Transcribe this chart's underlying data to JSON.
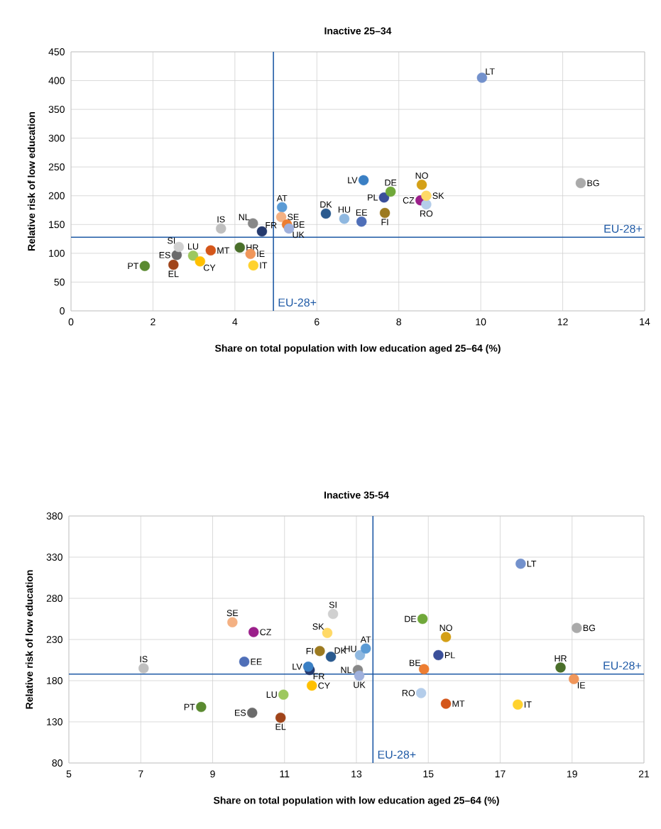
{
  "chart_data": [
    {
      "type": "scatter",
      "title": "Inactive 25–34",
      "xlabel": "Share on total population with low education aged 25–64 (%)",
      "ylabel": "Relative risk of low education",
      "xlim": [
        0,
        14
      ],
      "ylim": [
        0,
        450
      ],
      "xticks": [
        0,
        2,
        4,
        6,
        8,
        10,
        12,
        14
      ],
      "yticks": [
        0,
        50,
        100,
        150,
        200,
        250,
        300,
        350,
        400,
        450
      ],
      "grid": true,
      "marker": "circle",
      "ref_lines": [
        {
          "axis": "x",
          "value": 4.94,
          "label": "EU-28+",
          "color": "#1f5aa6"
        },
        {
          "axis": "y",
          "value": 128,
          "label": "EU-28+",
          "color": "#1f5aa6"
        }
      ],
      "series": [
        {
          "name": "PT",
          "color": "#5a8a30",
          "x": [
            1.8
          ],
          "values": [
            78
          ]
        },
        {
          "name": "EL",
          "color": "#a0441a",
          "x": [
            2.5
          ],
          "values": [
            80
          ]
        },
        {
          "name": "ES",
          "color": "#6b6b6b",
          "x": [
            2.58
          ],
          "values": [
            97
          ]
        },
        {
          "name": "SI",
          "color": "#d0d0d0",
          "x": [
            2.63
          ],
          "values": [
            111
          ]
        },
        {
          "name": "LU",
          "color": "#9dc85f",
          "x": [
            2.98
          ],
          "values": [
            96
          ]
        },
        {
          "name": "CY",
          "color": "#ffc000",
          "x": [
            3.15
          ],
          "values": [
            86
          ]
        },
        {
          "name": "MT",
          "color": "#d4561a",
          "x": [
            3.41
          ],
          "values": [
            105
          ]
        },
        {
          "name": "HR",
          "color": "#4a6f2a",
          "x": [
            4.12
          ],
          "values": [
            110
          ]
        },
        {
          "name": "IE",
          "color": "#f0965a",
          "x": [
            4.38
          ],
          "values": [
            99
          ]
        },
        {
          "name": "IT",
          "color": "#ffd22e",
          "x": [
            4.45
          ],
          "values": [
            79
          ]
        },
        {
          "name": "IS",
          "color": "#bfbfbf",
          "x": [
            3.66
          ],
          "values": [
            143
          ]
        },
        {
          "name": "NL",
          "color": "#888888",
          "x": [
            4.44
          ],
          "values": [
            152
          ]
        },
        {
          "name": "FR",
          "color": "#253a6e",
          "x": [
            4.66
          ],
          "values": [
            138
          ]
        },
        {
          "name": "AT",
          "color": "#5b9bd5",
          "x": [
            5.15
          ],
          "values": [
            180
          ]
        },
        {
          "name": "SE",
          "color": "#f4b183",
          "x": [
            5.13
          ],
          "values": [
            163
          ]
        },
        {
          "name": "BE",
          "color": "#ed7d31",
          "x": [
            5.27
          ],
          "values": [
            150
          ]
        },
        {
          "name": "UK",
          "color": "#9fb0dc",
          "x": [
            5.32
          ],
          "values": [
            143
          ]
        },
        {
          "name": "DK",
          "color": "#2a5a8f",
          "x": [
            6.22
          ],
          "values": [
            169
          ]
        },
        {
          "name": "HU",
          "color": "#8fb8e0",
          "x": [
            6.67
          ],
          "values": [
            160
          ]
        },
        {
          "name": "EE",
          "color": "#4f6fb8",
          "x": [
            7.09
          ],
          "values": [
            155
          ]
        },
        {
          "name": "LV",
          "color": "#3a7fc4",
          "x": [
            7.14
          ],
          "values": [
            227
          ]
        },
        {
          "name": "FI",
          "color": "#9c7a20",
          "x": [
            7.66
          ],
          "values": [
            170
          ]
        },
        {
          "name": "PL",
          "color": "#3a4f9a",
          "x": [
            7.64
          ],
          "values": [
            197
          ]
        },
        {
          "name": "DE",
          "color": "#70a83a",
          "x": [
            7.8
          ],
          "values": [
            207
          ]
        },
        {
          "name": "CZ",
          "color": "#9b1f8a",
          "x": [
            8.53
          ],
          "values": [
            192
          ]
        },
        {
          "name": "RO",
          "color": "#b4cdea",
          "x": [
            8.67
          ],
          "values": [
            185
          ]
        },
        {
          "name": "SK",
          "color": "#ffd966",
          "x": [
            8.67
          ],
          "values": [
            200
          ]
        },
        {
          "name": "NO",
          "color": "#d4a017",
          "x": [
            8.56
          ],
          "values": [
            219
          ]
        },
        {
          "name": "LT",
          "color": "#7391cc",
          "x": [
            10.03
          ],
          "values": [
            405
          ]
        },
        {
          "name": "BG",
          "color": "#aaaaaa",
          "x": [
            12.44
          ],
          "values": [
            222
          ]
        }
      ]
    },
    {
      "type": "scatter",
      "title": "Inactive 35-54",
      "xlabel": "Share on total population with low education aged 25–64 (%)",
      "ylabel": "Relative risk of low education",
      "xlim": [
        5,
        21
      ],
      "ylim": [
        80,
        380
      ],
      "xticks": [
        5,
        7,
        9,
        11,
        13,
        15,
        17,
        19,
        21
      ],
      "yticks": [
        80,
        130,
        180,
        230,
        280,
        330,
        380
      ],
      "grid": true,
      "marker": "circle",
      "ref_lines": [
        {
          "axis": "x",
          "value": 13.46,
          "label": "EU-28+",
          "color": "#1f5aa6"
        },
        {
          "axis": "y",
          "value": 188,
          "label": "EU-28+",
          "color": "#1f5aa6"
        }
      ],
      "series": [
        {
          "name": "IS",
          "color": "#bfbfbf",
          "x": [
            7.08
          ],
          "values": [
            195
          ]
        },
        {
          "name": "PT",
          "color": "#5a8a30",
          "x": [
            8.68
          ],
          "values": [
            148
          ]
        },
        {
          "name": "SE",
          "color": "#f4b183",
          "x": [
            9.55
          ],
          "values": [
            251
          ]
        },
        {
          "name": "CZ",
          "color": "#9b1f8a",
          "x": [
            10.14
          ],
          "values": [
            239
          ]
        },
        {
          "name": "EE",
          "color": "#4f6fb8",
          "x": [
            9.88
          ],
          "values": [
            203
          ]
        },
        {
          "name": "ES",
          "color": "#6b6b6b",
          "x": [
            10.1
          ],
          "values": [
            141
          ]
        },
        {
          "name": "EL",
          "color": "#a0441a",
          "x": [
            10.89
          ],
          "values": [
            135
          ]
        },
        {
          "name": "LU",
          "color": "#9dc85f",
          "x": [
            10.97
          ],
          "values": [
            163
          ]
        },
        {
          "name": "CY",
          "color": "#ffc000",
          "x": [
            11.76
          ],
          "values": [
            174
          ]
        },
        {
          "name": "FR",
          "color": "#253a6e",
          "x": [
            11.7
          ],
          "values": [
            193
          ]
        },
        {
          "name": "LV",
          "color": "#3a7fc4",
          "x": [
            11.66
          ],
          "values": [
            197
          ]
        },
        {
          "name": "FI",
          "color": "#9c7a20",
          "x": [
            11.98
          ],
          "values": [
            216
          ]
        },
        {
          "name": "SK",
          "color": "#ffd966",
          "x": [
            12.19
          ],
          "values": [
            238
          ]
        },
        {
          "name": "SI",
          "color": "#d0d0d0",
          "x": [
            12.35
          ],
          "values": [
            261
          ]
        },
        {
          "name": "DK",
          "color": "#2a5a8f",
          "x": [
            12.29
          ],
          "values": [
            209
          ]
        },
        {
          "name": "HU",
          "color": "#8fb8e0",
          "x": [
            13.1
          ],
          "values": [
            211
          ]
        },
        {
          "name": "NL",
          "color": "#888888",
          "x": [
            13.04
          ],
          "values": [
            193
          ]
        },
        {
          "name": "UK",
          "color": "#9fb0dc",
          "x": [
            13.08
          ],
          "values": [
            186
          ]
        },
        {
          "name": "AT",
          "color": "#5b9bd5",
          "x": [
            13.26
          ],
          "values": [
            219
          ]
        },
        {
          "name": "DE",
          "color": "#70a83a",
          "x": [
            14.84
          ],
          "values": [
            255
          ]
        },
        {
          "name": "BE",
          "color": "#ed7d31",
          "x": [
            14.88
          ],
          "values": [
            194
          ]
        },
        {
          "name": "RO",
          "color": "#b4cdea",
          "x": [
            14.8
          ],
          "values": [
            165
          ]
        },
        {
          "name": "PL",
          "color": "#3a4f9a",
          "x": [
            15.28
          ],
          "values": [
            211
          ]
        },
        {
          "name": "NO",
          "color": "#d4a017",
          "x": [
            15.49
          ],
          "values": [
            233
          ]
        },
        {
          "name": "MT",
          "color": "#d4561a",
          "x": [
            15.49
          ],
          "values": [
            152
          ]
        },
        {
          "name": "IT",
          "color": "#ffd22e",
          "x": [
            17.49
          ],
          "values": [
            151
          ]
        },
        {
          "name": "LT",
          "color": "#7391cc",
          "x": [
            17.57
          ],
          "values": [
            322
          ]
        },
        {
          "name": "HR",
          "color": "#4a6f2a",
          "x": [
            18.68
          ],
          "values": [
            196
          ]
        },
        {
          "name": "IE",
          "color": "#f0965a",
          "x": [
            19.05
          ],
          "values": [
            182
          ]
        },
        {
          "name": "BG",
          "color": "#aaaaaa",
          "x": [
            19.13
          ],
          "values": [
            244
          ]
        }
      ]
    }
  ]
}
